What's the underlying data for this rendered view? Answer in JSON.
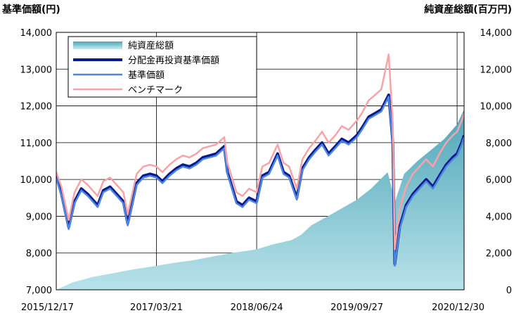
{
  "chart_data": {
    "type": "line",
    "left_axis_title": "基準価額(円)",
    "right_axis_title": "純資産総額(百万円)",
    "y_left": {
      "min": 7000,
      "max": 14000,
      "ticks": [
        "7,000",
        "8,000",
        "9,000",
        "10,000",
        "11,000",
        "12,000",
        "13,000",
        "14,000"
      ]
    },
    "y_right": {
      "min": 0,
      "max": 14000,
      "ticks": [
        "0",
        "2,000",
        "4,000",
        "6,000",
        "8,000",
        "10,000",
        "12,000",
        "14,000"
      ]
    },
    "x_ticks": [
      "2015/12/17",
      "2017/03/21",
      "2018/06/24",
      "2019/09/27",
      "2020/12/30"
    ],
    "grid": true,
    "legend": {
      "placement": "top-left"
    },
    "series": [
      {
        "name": "純資産総額",
        "kind": "area",
        "axis": "right",
        "color": "#5fb3c3",
        "x": [
          "2015/12/17",
          "2016/03/01",
          "2016/06/01",
          "2016/09/01",
          "2016/12/01",
          "2017/03/21",
          "2017/06/01",
          "2017/09/01",
          "2017/12/01",
          "2018/03/01",
          "2018/06/24",
          "2018/09/01",
          "2018/12/01",
          "2019/01/15",
          "2019/03/01",
          "2019/06/01",
          "2019/09/27",
          "2019/12/01",
          "2020/02/15",
          "2020/03/20",
          "2020/05/01",
          "2020/07/01",
          "2020/09/01",
          "2020/11/01",
          "2020/12/30",
          "2021/01/31"
        ],
        "values": [
          0,
          400,
          700,
          900,
          1100,
          1300,
          1450,
          1600,
          1800,
          2000,
          2200,
          2450,
          2700,
          3000,
          3500,
          4100,
          4900,
          5500,
          6400,
          4800,
          6300,
          7000,
          7600,
          8200,
          9000,
          9800
        ]
      },
      {
        "name": "分配金再投資基準価額",
        "kind": "line",
        "axis": "left",
        "color": "#0a1a8c",
        "x": [
          "2015/12/17",
          "2016/01/10",
          "2016/02/12",
          "2016/03/10",
          "2016/04/10",
          "2016/05/10",
          "2016/06/24",
          "2016/07/20",
          "2016/08/20",
          "2016/09/20",
          "2016/10/20",
          "2016/11/09",
          "2016/12/20",
          "2017/01/20",
          "2017/02/20",
          "2017/03/21",
          "2017/04/17",
          "2017/05/20",
          "2017/06/20",
          "2017/07/20",
          "2017/08/20",
          "2017/09/20",
          "2017/10/20",
          "2017/11/20",
          "2017/12/20",
          "2018/01/26",
          "2018/02/10",
          "2018/03/23",
          "2018/04/20",
          "2018/05/20",
          "2018/06/24",
          "2018/07/20",
          "2018/08/20",
          "2018/09/28",
          "2018/10/25",
          "2018/11/20",
          "2018/12/25",
          "2019/01/20",
          "2019/02/20",
          "2019/03/20",
          "2019/04/20",
          "2019/05/20",
          "2019/06/20",
          "2019/07/20",
          "2019/08/20",
          "2019/09/27",
          "2019/10/20",
          "2019/11/20",
          "2019/12/20",
          "2020/01/17",
          "2020/02/20",
          "2020/03/10",
          "2020/03/19",
          "2020/04/10",
          "2020/05/10",
          "2020/06/10",
          "2020/07/10",
          "2020/08/10",
          "2020/09/10",
          "2020/10/10",
          "2020/11/10",
          "2020/12/10",
          "2020/12/30",
          "2021/01/20",
          "2021/01/31"
        ],
        "values": [
          10100,
          9600,
          8700,
          9400,
          9750,
          9600,
          9300,
          9700,
          9800,
          9600,
          9400,
          8800,
          9900,
          10100,
          10150,
          10100,
          9950,
          10150,
          10300,
          10400,
          10350,
          10450,
          10600,
          10650,
          10700,
          10900,
          10200,
          9400,
          9300,
          9500,
          9400,
          10100,
          10200,
          10700,
          10200,
          10100,
          9500,
          10300,
          10600,
          10800,
          11000,
          10700,
          10900,
          11100,
          11000,
          11200,
          11400,
          11700,
          11800,
          11900,
          12300,
          11000,
          7700,
          8700,
          9300,
          9600,
          9800,
          10000,
          9800,
          10100,
          10400,
          10600,
          10700,
          11000,
          11200
        ]
      },
      {
        "name": "基準価額",
        "kind": "line",
        "axis": "left",
        "color": "#4d86e0",
        "x": [
          "2015/12/17",
          "2016/01/10",
          "2016/02/12",
          "2016/03/10",
          "2016/04/10",
          "2016/05/10",
          "2016/06/24",
          "2016/07/20",
          "2016/08/20",
          "2016/09/20",
          "2016/10/20",
          "2016/11/09",
          "2016/12/20",
          "2017/01/20",
          "2017/02/20",
          "2017/03/21",
          "2017/04/17",
          "2017/05/20",
          "2017/06/20",
          "2017/07/20",
          "2017/08/20",
          "2017/09/20",
          "2017/10/20",
          "2017/11/20",
          "2017/12/20",
          "2018/01/26",
          "2018/02/10",
          "2018/03/23",
          "2018/04/20",
          "2018/05/20",
          "2018/06/24",
          "2018/07/20",
          "2018/08/20",
          "2018/09/28",
          "2018/10/25",
          "2018/11/20",
          "2018/12/25",
          "2019/01/20",
          "2019/02/20",
          "2019/03/20",
          "2019/04/20",
          "2019/05/20",
          "2019/06/20",
          "2019/07/20",
          "2019/08/20",
          "2019/09/27",
          "2019/10/20",
          "2019/11/20",
          "2019/12/20",
          "2020/01/17",
          "2020/02/20",
          "2020/03/10",
          "2020/03/19",
          "2020/04/10",
          "2020/05/10",
          "2020/06/10",
          "2020/07/10",
          "2020/08/10",
          "2020/09/10",
          "2020/10/10",
          "2020/11/10",
          "2020/12/10",
          "2020/12/30",
          "2021/01/20",
          "2021/01/31"
        ],
        "values": [
          10050,
          9550,
          8650,
          9350,
          9700,
          9550,
          9250,
          9650,
          9750,
          9550,
          9350,
          8750,
          9850,
          10050,
          10100,
          10050,
          9900,
          10100,
          10250,
          10350,
          10300,
          10400,
          10550,
          10600,
          10650,
          10850,
          10150,
          9350,
          9250,
          9450,
          9350,
          10050,
          10150,
          10650,
          10150,
          10050,
          9450,
          10250,
          10550,
          10750,
          10950,
          10650,
          10850,
          11050,
          10950,
          11150,
          11350,
          11650,
          11750,
          11850,
          12250,
          10950,
          7650,
          8650,
          9250,
          9550,
          9750,
          9950,
          9750,
          10050,
          10350,
          10550,
          10650,
          10950,
          11150
        ]
      },
      {
        "name": "ベンチマーク",
        "kind": "line",
        "axis": "left",
        "color": "#f7a3a8",
        "x": [
          "2015/12/17",
          "2016/01/10",
          "2016/02/12",
          "2016/03/10",
          "2016/04/10",
          "2016/05/10",
          "2016/06/24",
          "2016/07/20",
          "2016/08/20",
          "2016/09/20",
          "2016/10/20",
          "2016/11/09",
          "2016/12/20",
          "2017/01/20",
          "2017/02/20",
          "2017/03/21",
          "2017/04/17",
          "2017/05/20",
          "2017/06/20",
          "2017/07/20",
          "2017/08/20",
          "2017/09/20",
          "2017/10/20",
          "2017/11/20",
          "2017/12/20",
          "2018/01/26",
          "2018/02/10",
          "2018/03/23",
          "2018/04/20",
          "2018/05/20",
          "2018/06/24",
          "2018/07/20",
          "2018/08/20",
          "2018/09/28",
          "2018/10/25",
          "2018/11/20",
          "2018/12/25",
          "2019/01/20",
          "2019/02/20",
          "2019/03/20",
          "2019/04/20",
          "2019/05/20",
          "2019/06/20",
          "2019/07/20",
          "2019/08/20",
          "2019/09/27",
          "2019/10/20",
          "2019/11/20",
          "2019/12/20",
          "2020/01/17",
          "2020/02/20",
          "2020/03/10",
          "2020/03/19",
          "2020/04/10",
          "2020/05/10",
          "2020/06/10",
          "2020/07/10",
          "2020/08/10",
          "2020/09/10",
          "2020/10/10",
          "2020/11/10",
          "2020/12/10",
          "2020/12/30",
          "2021/01/20",
          "2021/01/31"
        ],
        "values": [
          10200,
          9800,
          8900,
          9650,
          10000,
          9850,
          9550,
          9950,
          10050,
          9850,
          9650,
          9050,
          10150,
          10350,
          10400,
          10350,
          10200,
          10400,
          10550,
          10650,
          10600,
          10700,
          10850,
          10900,
          10950,
          11150,
          10450,
          9650,
          9550,
          9750,
          9650,
          10350,
          10450,
          10950,
          10450,
          10350,
          9750,
          10550,
          10850,
          11050,
          11300,
          11000,
          11200,
          11450,
          11350,
          11600,
          11800,
          12150,
          12300,
          12450,
          13400,
          11500,
          8100,
          9200,
          9800,
          10150,
          10350,
          10550,
          10350,
          10700,
          11000,
          11200,
          11300,
          11600,
          11800
        ]
      }
    ]
  }
}
